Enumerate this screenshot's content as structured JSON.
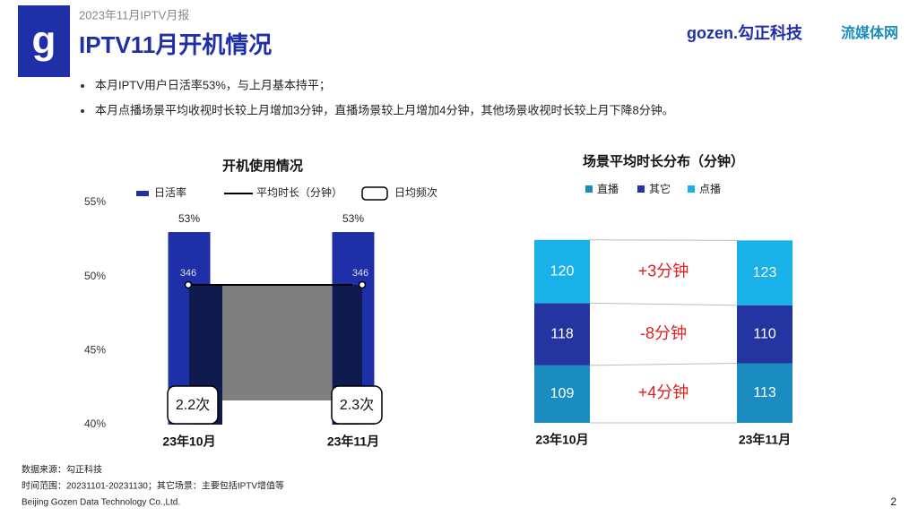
{
  "header": {
    "report": "2023年11月IPTV月报",
    "title": "IPTV11月开机情况",
    "logo": "gozen.勾正科技",
    "partner": "流媒体网"
  },
  "bullets": [
    "本月IPTV用户日活率53%，与上月基本持平；",
    "本月点播场景平均收视时长较上月增加3分钟，直播场景较上月增加4分钟，其他场景收视时长较上月下降8分钟。"
  ],
  "chart_data": [
    {
      "type": "bar",
      "title": "开机使用情况",
      "categories": [
        "23年10月",
        "23年11月"
      ],
      "series": [
        {
          "name": "日活率",
          "color": "#1f2fa8",
          "values": [
            53,
            53
          ],
          "value_labels": [
            "53%",
            "53%"
          ]
        },
        {
          "name": "平均时长（分钟）",
          "type": "line",
          "axis": "y2",
          "color": "#000000",
          "values": [
            346,
            346
          ]
        },
        {
          "name": "日均频次",
          "type": "box",
          "color": "#ffffff",
          "values": [
            2.2,
            2.3
          ],
          "value_labels": [
            "2.2次",
            "2.3次"
          ]
        }
      ],
      "ylim": [
        40,
        55
      ],
      "yticks": [
        {
          "value": 40,
          "label": "40%"
        },
        {
          "value": 45,
          "label": "45%"
        },
        {
          "value": 50,
          "label": "50%"
        },
        {
          "value": 55,
          "label": "55%"
        }
      ],
      "y2lim": [
        0,
        550
      ],
      "legend": "top"
    },
    {
      "type": "stacked_bar",
      "title": "场景平均时长分布（分钟）",
      "categories": [
        "23年10月",
        "23年11月"
      ],
      "series": [
        {
          "name": "直播",
          "color": "#1a8cbf",
          "values": [
            109,
            113
          ]
        },
        {
          "name": "其它",
          "color": "#2434a0",
          "values": [
            118,
            110
          ]
        },
        {
          "name": "点播",
          "color": "#1ab0e8",
          "values": [
            120,
            123
          ]
        }
      ],
      "annotations": [
        "+4分钟",
        "-8分钟",
        "+3分钟"
      ],
      "annotation_color": "#e02020",
      "ylim": [
        0,
        350
      ],
      "legend": "top"
    }
  ],
  "footer": {
    "source": "数据来源：勾正科技",
    "range": "时间范围：20231101-20231130；其它场景：主要包括IPTV增值等",
    "company": "Beijing Gozen Data Technology Co.,Ltd.",
    "page": "2"
  }
}
